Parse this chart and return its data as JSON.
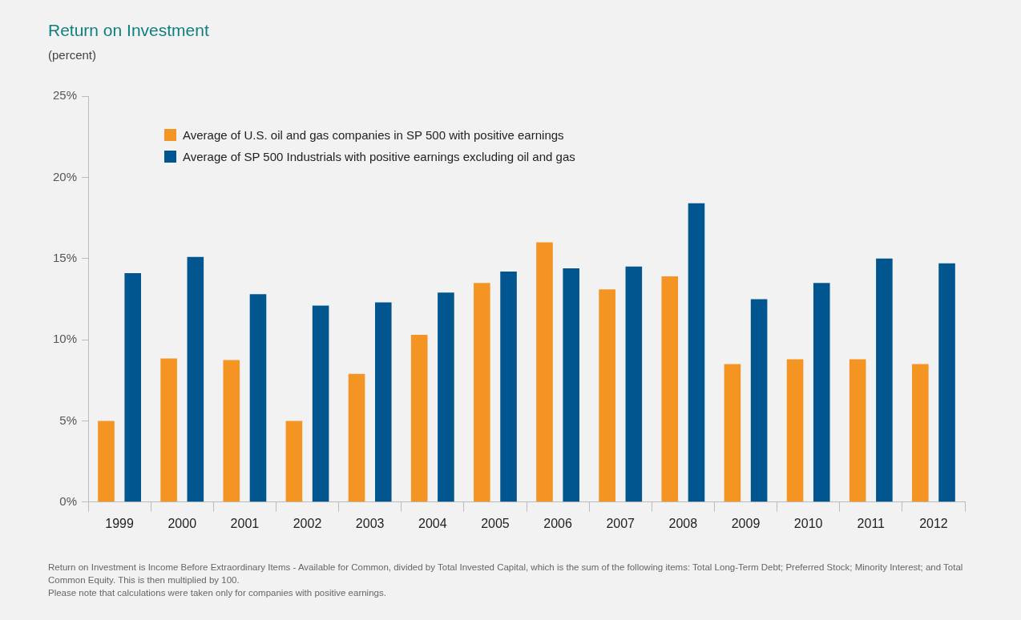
{
  "chart_data": {
    "type": "bar",
    "title": "Return on Investment",
    "subtitle": "(percent)",
    "categories": [
      "1999",
      "2000",
      "2001",
      "2002",
      "2003",
      "2004",
      "2005",
      "2006",
      "2007",
      "2008",
      "2009",
      "2010",
      "2011",
      "2012"
    ],
    "series": [
      {
        "name": "Average of U.S. oil and gas companies in SP 500 with positive earnings",
        "color": "#f39423",
        "values": [
          5.0,
          8.85,
          8.75,
          5.0,
          7.9,
          10.3,
          13.5,
          16.0,
          13.1,
          13.9,
          8.5,
          8.8,
          8.8,
          8.5
        ]
      },
      {
        "name": "Average of SP 500 Industrials with positive earnings excluding oil and gas",
        "color": "#02568f",
        "values": [
          14.1,
          15.1,
          12.8,
          12.1,
          12.3,
          12.9,
          14.2,
          14.4,
          14.5,
          18.4,
          12.5,
          13.5,
          15.0,
          14.7
        ]
      }
    ],
    "ylim": [
      0,
      25
    ],
    "yticks": [
      {
        "value": 0,
        "label": "0%"
      },
      {
        "value": 5,
        "label": "5%"
      },
      {
        "value": 10,
        "label": "10%"
      },
      {
        "value": 15,
        "label": "15%"
      },
      {
        "value": 20,
        "label": "20%"
      },
      {
        "value": 25,
        "label": "25%"
      }
    ],
    "grid": false,
    "legend": "top left",
    "annotations": [
      "Return on Investment is Income Before Extraordinary Items - Available for Common, divided by Total Invested Capital, which is the sum of the following items: Total Long-Term Debt; Preferred Stock; Minority Interest; and Total Common Equity. This is then multiplied by 100.",
      "Please note that calculations were taken only for companies with positive earnings."
    ]
  }
}
